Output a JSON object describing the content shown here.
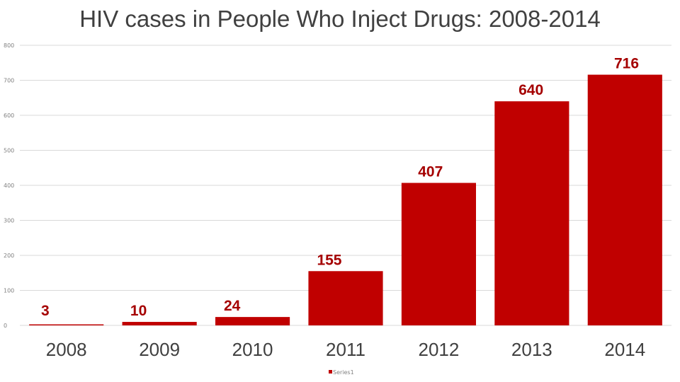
{
  "chart_data": {
    "type": "bar",
    "title": "HIV cases in People Who Inject Drugs: 2008-2014",
    "categories": [
      "2008",
      "2009",
      "2010",
      "2011",
      "2012",
      "2013",
      "2014"
    ],
    "series": [
      {
        "name": "Series1",
        "values": [
          3,
          10,
          24,
          155,
          407,
          640,
          716
        ],
        "color": "#c00000"
      }
    ],
    "ylim": [
      0,
      800
    ],
    "yticks": [
      0,
      100,
      200,
      300,
      400,
      500,
      600,
      700,
      800
    ],
    "grid": true,
    "xlabel": "",
    "ylabel": "",
    "legend": "bottom",
    "data_label_color": "#a50000"
  }
}
